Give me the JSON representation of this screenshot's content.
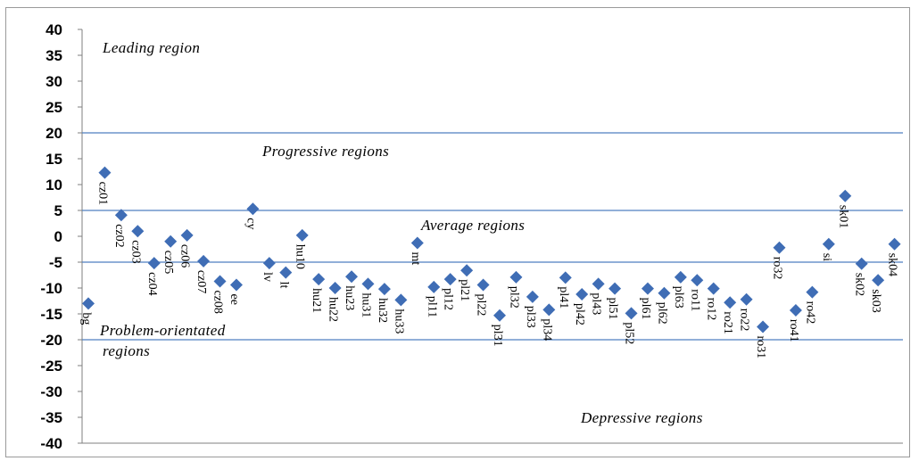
{
  "chart_data": {
    "type": "scatter",
    "title": "",
    "xlabel": "",
    "ylabel": "",
    "ylim": [
      -40,
      40
    ],
    "yticks": [
      40,
      35,
      30,
      25,
      20,
      15,
      10,
      5,
      0,
      -5,
      -10,
      -15,
      -20,
      -25,
      -30,
      -35,
      -40
    ],
    "ytick_labels": [
      "40",
      "35",
      "30",
      "25",
      "20",
      "15",
      "10",
      "5",
      "0",
      "-5",
      "-10",
      "-15",
      "-20",
      "-25",
      "-30",
      "-35",
      "-40"
    ],
    "threshold_lines": [
      20,
      5,
      -5,
      -20
    ],
    "grid": false,
    "legend": "none",
    "marker": "diamond",
    "marker_color": "#3f6db5",
    "threshold_color": "#4f7fc0",
    "regions": [
      {
        "label": "Leading region"
      },
      {
        "label": "Progressive regions"
      },
      {
        "label": "Average regions"
      },
      {
        "label": "Problem-orientated regions"
      },
      {
        "label": "Depressive regions"
      }
    ],
    "points": [
      {
        "label": "bg",
        "y": -13
      },
      {
        "label": "cz01",
        "y": 12.3
      },
      {
        "label": "cz02",
        "y": 4.1
      },
      {
        "label": "cz03",
        "y": 1.0
      },
      {
        "label": "cz04",
        "y": -5.2
      },
      {
        "label": "cz05",
        "y": -1.0
      },
      {
        "label": "cz06",
        "y": 0.2
      },
      {
        "label": "cz07",
        "y": -4.8
      },
      {
        "label": "cz08",
        "y": -8.7
      },
      {
        "label": "ee",
        "y": -9.4
      },
      {
        "label": "cy",
        "y": 5.3
      },
      {
        "label": "lv",
        "y": -5.2
      },
      {
        "label": "lt",
        "y": -7.0
      },
      {
        "label": "hu10",
        "y": 0.2
      },
      {
        "label": "hu21",
        "y": -8.3
      },
      {
        "label": "hu22",
        "y": -10.0
      },
      {
        "label": "hu23",
        "y": -7.8
      },
      {
        "label": "hu31",
        "y": -9.2
      },
      {
        "label": "hu32",
        "y": -10.2
      },
      {
        "label": "hu33",
        "y": -12.3
      },
      {
        "label": "mt",
        "y": -1.3
      },
      {
        "label": "pl11",
        "y": -9.8
      },
      {
        "label": "pl12",
        "y": -8.3
      },
      {
        "label": "pl21",
        "y": -6.6
      },
      {
        "label": "pl22",
        "y": -9.4
      },
      {
        "label": "pl31",
        "y": -15.3
      },
      {
        "label": "pl32",
        "y": -7.9
      },
      {
        "label": "pl33",
        "y": -11.7
      },
      {
        "label": "pl34",
        "y": -14.2
      },
      {
        "label": "pl41",
        "y": -8.0
      },
      {
        "label": "pl42",
        "y": -11.2
      },
      {
        "label": "pl43",
        "y": -9.2
      },
      {
        "label": "pl51",
        "y": -10.1
      },
      {
        "label": "pl52",
        "y": -14.9
      },
      {
        "label": "pl61",
        "y": -10.1
      },
      {
        "label": "pl62",
        "y": -11.0
      },
      {
        "label": "pl63",
        "y": -7.9
      },
      {
        "label": "ro11",
        "y": -8.5
      },
      {
        "label": "ro12",
        "y": -10.1
      },
      {
        "label": "ro21",
        "y": -12.8
      },
      {
        "label": "ro22",
        "y": -12.2
      },
      {
        "label": "ro31",
        "y": -17.5
      },
      {
        "label": "ro32",
        "y": -2.2
      },
      {
        "label": "ro41",
        "y": -14.3
      },
      {
        "label": "ro42",
        "y": -10.8
      },
      {
        "label": "si",
        "y": -1.5
      },
      {
        "label": "sk01",
        "y": 7.8
      },
      {
        "label": "sk02",
        "y": -5.3
      },
      {
        "label": "sk03",
        "y": -8.5
      },
      {
        "label": "sk04",
        "y": -1.5
      }
    ]
  }
}
